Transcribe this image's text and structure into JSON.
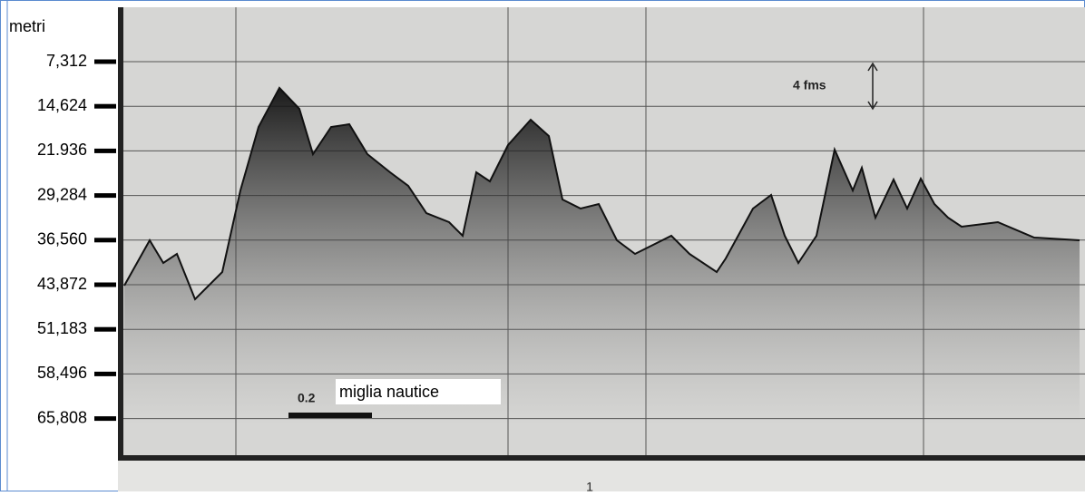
{
  "axis": {
    "title": "metri",
    "ticks": [
      "7,312",
      "14,624",
      "21.936",
      "29,284",
      "36,560",
      "43,872",
      "51,183",
      "58,496",
      "65,808"
    ]
  },
  "annotations": {
    "range": "4 fms",
    "scale": "0.2",
    "scale_unit": "miglia nautice",
    "bottom": "1"
  }
}
